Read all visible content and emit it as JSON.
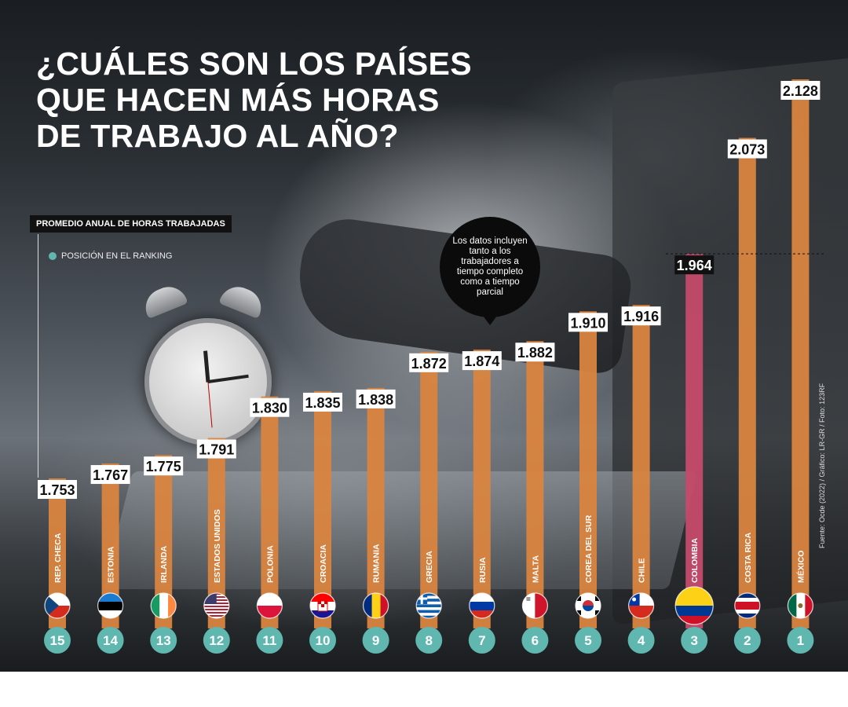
{
  "title_lines": [
    "¿CUÁLES SON LOS PAÍSES",
    "QUE HACEN MÁS HORAS",
    "DE TRABAJO AL AÑO?"
  ],
  "legend": {
    "bar_label": "PROMEDIO ANUAL DE HORAS TRABAJADAS",
    "rank_label": "POSICIÓN EN EL RANKING"
  },
  "note": "Los datos incluyen tanto a los trabajadores a tiempo completo como a tiempo parcial",
  "source": "Fuente: Ocde (2022) / Gráfico: LR-GR / Foto: 123RF",
  "colors": {
    "bar": "#d9843f",
    "highlight_bar": "#c54a6a",
    "rank_circle": "#5fb7b0"
  },
  "chart_data": {
    "type": "bar",
    "categories": [
      "REP. CHECA",
      "ESTONIA",
      "IRLANDA",
      "ESTADOS UNIDOS",
      "POLONIA",
      "CROACIA",
      "RUMANIA",
      "GRECIA",
      "RUSIA",
      "MALTA",
      "COREA DEL SUR",
      "CHILE",
      "COLOMBIA",
      "COSTA RICA",
      "MÉXICO"
    ],
    "values": [
      1753,
      1767,
      1775,
      1791,
      1830,
      1835,
      1838,
      1872,
      1874,
      1882,
      1910,
      1916,
      1964,
      2073,
      2128
    ],
    "value_labels": [
      "1.753",
      "1.767",
      "1.775",
      "1.791",
      "1.830",
      "1.835",
      "1.838",
      "1.872",
      "1.874",
      "1.882",
      "1.910",
      "1.916",
      "1.964",
      "2.073",
      "2.128"
    ],
    "ranks": [
      "15",
      "14",
      "13",
      "12",
      "11",
      "10",
      "9",
      "8",
      "7",
      "6",
      "5",
      "4",
      "3",
      "2",
      "1"
    ],
    "flags": [
      "czech-flag",
      "estonia-flag",
      "ireland-flag",
      "usa-flag",
      "poland-flag",
      "croatia-flag",
      "romania-flag",
      "greece-flag",
      "russia-flag",
      "malta-flag",
      "south-korea-flag",
      "chile-flag",
      "colombia-flag",
      "costa-rica-flag",
      "mexico-flag"
    ],
    "highlight": "COLOMBIA",
    "ylabel": "PROMEDIO ANUAL DE HORAS TRABAJADAS",
    "grid": false
  }
}
